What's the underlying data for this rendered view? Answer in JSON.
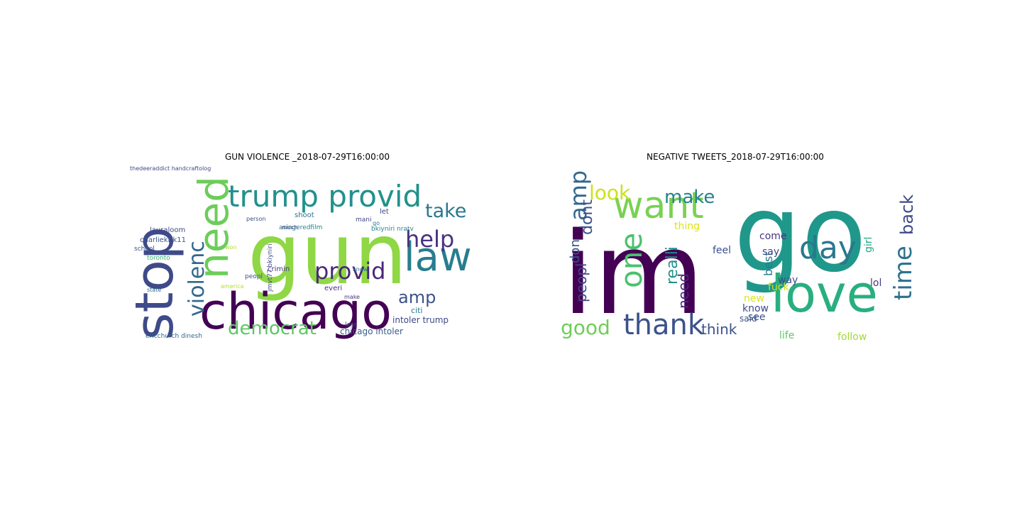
{
  "panels": [
    {
      "title": "GUN VIOLENCE _2018-07-29T16:00:00",
      "words": [
        {
          "text": "gun",
          "color": "#8fd744"
        },
        {
          "text": "chicago",
          "color": "#440154"
        },
        {
          "text": "stop",
          "color": "#3e4a89"
        },
        {
          "text": "need",
          "color": "#6ccd5a"
        },
        {
          "text": "law",
          "color": "#287d8e"
        },
        {
          "text": "trump provid",
          "color": "#21918c"
        },
        {
          "text": "provid",
          "color": "#482878"
        },
        {
          "text": "help",
          "color": "#46337e"
        },
        {
          "text": "take",
          "color": "#2a788e"
        },
        {
          "text": "violenc",
          "color": "#31688e"
        },
        {
          "text": "democrat",
          "color": "#5ec962"
        },
        {
          "text": "amp",
          "color": "#3b528b"
        },
        {
          "text": "intoler trump",
          "color": "#3e4989"
        },
        {
          "text": "chicago intoler",
          "color": "#365c8d"
        },
        {
          "text": "charliekirk11",
          "color": "#3b528b"
        },
        {
          "text": "lauraloom",
          "color": "#404688"
        },
        {
          "text": "thedeeraddict handcraftolog",
          "color": "#3e4a89"
        },
        {
          "text": "asingeredfilm",
          "color": "#26828e"
        },
        {
          "text": "toronto",
          "color": "#35b779"
        },
        {
          "text": "state",
          "color": "#2c728e"
        },
        {
          "text": "crimin",
          "color": "#453781"
        },
        {
          "text": "peopl",
          "color": "#3b528b"
        },
        {
          "text": "everi",
          "color": "#46327e"
        },
        {
          "text": "citi",
          "color": "#287d8e"
        },
        {
          "text": "bkiyniri nratv",
          "color": "#26828e"
        },
        {
          "text": "shoot",
          "color": "#2c728e"
        },
        {
          "text": "let",
          "color": "#3e4989"
        },
        {
          "text": "go",
          "color": "#2a788e"
        },
        {
          "text": "much",
          "color": "#414487"
        },
        {
          "text": "know",
          "color": "#31688e"
        },
        {
          "text": "make",
          "color": "#46337e"
        },
        {
          "text": "less",
          "color": "#3b528b"
        },
        {
          "text": "person",
          "color": "#3e4a89"
        },
        {
          "text": "mani",
          "color": "#414487"
        },
        {
          "text": "jmvt77 bkiyniri",
          "color": "#404688"
        },
        {
          "text": "ericchurch dinesh",
          "color": "#31688e"
        },
        {
          "text": "won",
          "color": "#b5de2b"
        },
        {
          "text": "america",
          "color": "#b5de2b"
        },
        {
          "text": "school",
          "color": "#3b528b"
        },
        {
          "text": "join",
          "color": "#3e4a89"
        }
      ]
    },
    {
      "title": "NEGATIVE TWEETS_2018-07-29T16:00:00",
      "words": [
        {
          "text": "im",
          "color": "#440154"
        },
        {
          "text": "go",
          "color": "#1f988b"
        },
        {
          "text": "love",
          "color": "#29af7f"
        },
        {
          "text": "want",
          "color": "#7ad151"
        },
        {
          "text": "day",
          "color": "#2a788e"
        },
        {
          "text": "thank",
          "color": "#3b528b"
        },
        {
          "text": "one",
          "color": "#4ac16d"
        },
        {
          "text": "amp",
          "color": "#31688e"
        },
        {
          "text": "time",
          "color": "#2c728e"
        },
        {
          "text": "look",
          "color": "#cde11d"
        },
        {
          "text": "make",
          "color": "#26828e"
        },
        {
          "text": "back",
          "color": "#3e4989"
        },
        {
          "text": "good",
          "color": "#6ece58"
        },
        {
          "text": "think",
          "color": "#3b528b"
        },
        {
          "text": "realli",
          "color": "#21918c"
        },
        {
          "text": "dont",
          "color": "#3b528b"
        },
        {
          "text": "peopl",
          "color": "#414487"
        },
        {
          "text": "need",
          "color": "#482878"
        },
        {
          "text": "don",
          "color": "#3b528b"
        },
        {
          "text": "best",
          "color": "#2a788e"
        },
        {
          "text": "girl",
          "color": "#22a884"
        },
        {
          "text": "say",
          "color": "#404688"
        },
        {
          "text": "lol",
          "color": "#443a83"
        },
        {
          "text": "feel",
          "color": "#3b528b"
        },
        {
          "text": "thing",
          "color": "#dde318"
        },
        {
          "text": "way",
          "color": "#3e4a89"
        },
        {
          "text": "fuck",
          "color": "#c8e020"
        },
        {
          "text": "come",
          "color": "#453781"
        },
        {
          "text": "new",
          "color": "#dde318"
        },
        {
          "text": "know",
          "color": "#3e4a89"
        },
        {
          "text": "said",
          "color": "#3b528b"
        },
        {
          "text": "see",
          "color": "#3b528b"
        },
        {
          "text": "life",
          "color": "#5ec962"
        },
        {
          "text": "follow",
          "color": "#a0da39"
        }
      ]
    }
  ]
}
